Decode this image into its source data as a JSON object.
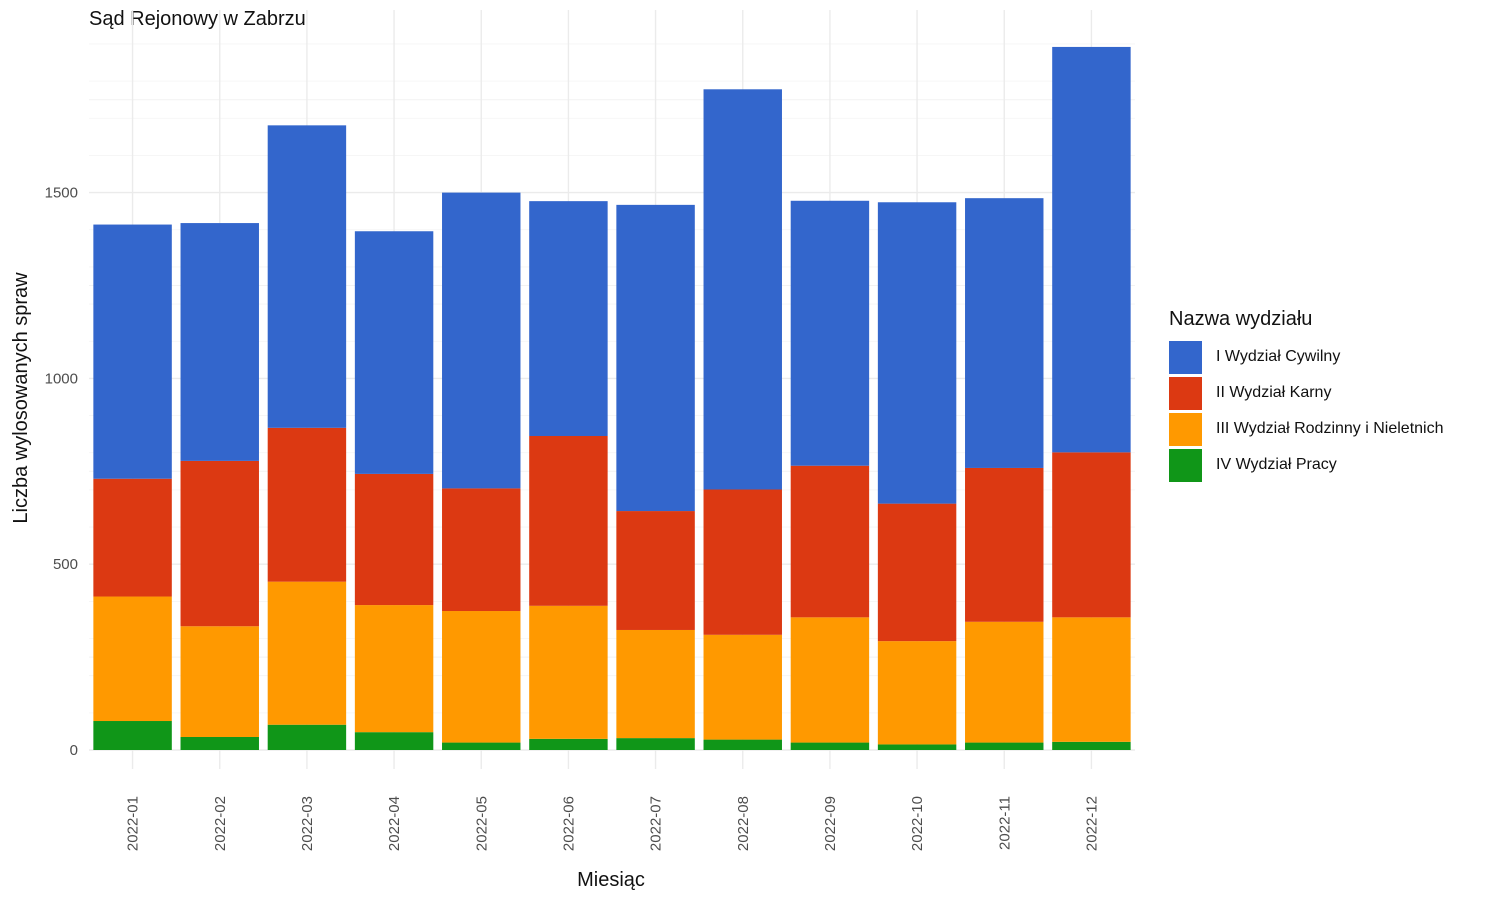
{
  "chart_data": {
    "type": "bar",
    "stacked": true,
    "title": "Sąd Rejonowy w Zabrzu",
    "xlabel": "Miesiąc",
    "ylabel": "Liczba wylosowanych spraw",
    "ylim": [
      0,
      1950
    ],
    "yticks": [
      0,
      500,
      1000,
      1500
    ],
    "grid": true,
    "legend_title": "Nazwa wydziału",
    "legend_position": "right",
    "categories": [
      "2022-01",
      "2022-02",
      "2022-03",
      "2022-04",
      "2022-05",
      "2022-06",
      "2022-07",
      "2022-08",
      "2022-09",
      "2022-10",
      "2022-11",
      "2022-12"
    ],
    "series": [
      {
        "name": "IV Wydział Pracy",
        "color": "#109618",
        "values": [
          78,
          35,
          68,
          48,
          20,
          30,
          32,
          28,
          20,
          15,
          20,
          22
        ]
      },
      {
        "name": "III Wydział Rodzinny i Nieletnich",
        "color": "#FF9900",
        "values": [
          335,
          298,
          385,
          342,
          354,
          358,
          291,
          282,
          337,
          278,
          325,
          335
        ]
      },
      {
        "name": "II Wydział Karny",
        "color": "#DC3912",
        "values": [
          317,
          445,
          414,
          353,
          330,
          457,
          320,
          391,
          408,
          370,
          414,
          444
        ]
      },
      {
        "name": "I Wydział Cywilny",
        "color": "#3366CC",
        "values": [
          684,
          640,
          814,
          653,
          796,
          632,
          824,
          1077,
          713,
          811,
          726,
          1091
        ]
      }
    ]
  }
}
